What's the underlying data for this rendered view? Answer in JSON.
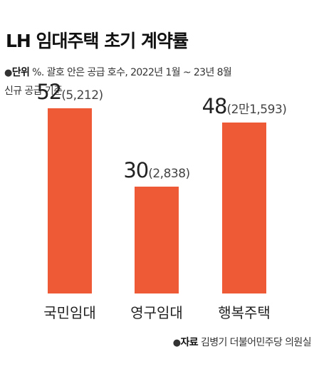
{
  "title": "LH 임대주택 초기 계약률",
  "unit_label": "단위",
  "unit_text": "%. 괄호 안은 공급 호수, 2022년 1월 ~ 23년 8월",
  "unit_text2": "신규 공급 기준",
  "source_label": "자료",
  "source_text": "김병기 더불어민주당 의원실",
  "colors": {
    "bar": "#EE5A35",
    "text": "#222222"
  },
  "chart_data": {
    "type": "bar",
    "title": "LH 임대주택 초기 계약률",
    "xlabel": "",
    "ylabel": "",
    "categories": [
      "국민임대",
      "영구임대",
      "행복주택"
    ],
    "values": [
      52,
      30,
      48
    ],
    "value_labels": [
      "52",
      "30",
      "48"
    ],
    "supply_labels": [
      "(5,212)",
      "(2,838)",
      "(2만1,593)"
    ],
    "ylim": [
      0,
      60
    ],
    "grid": false,
    "legend": "none"
  }
}
